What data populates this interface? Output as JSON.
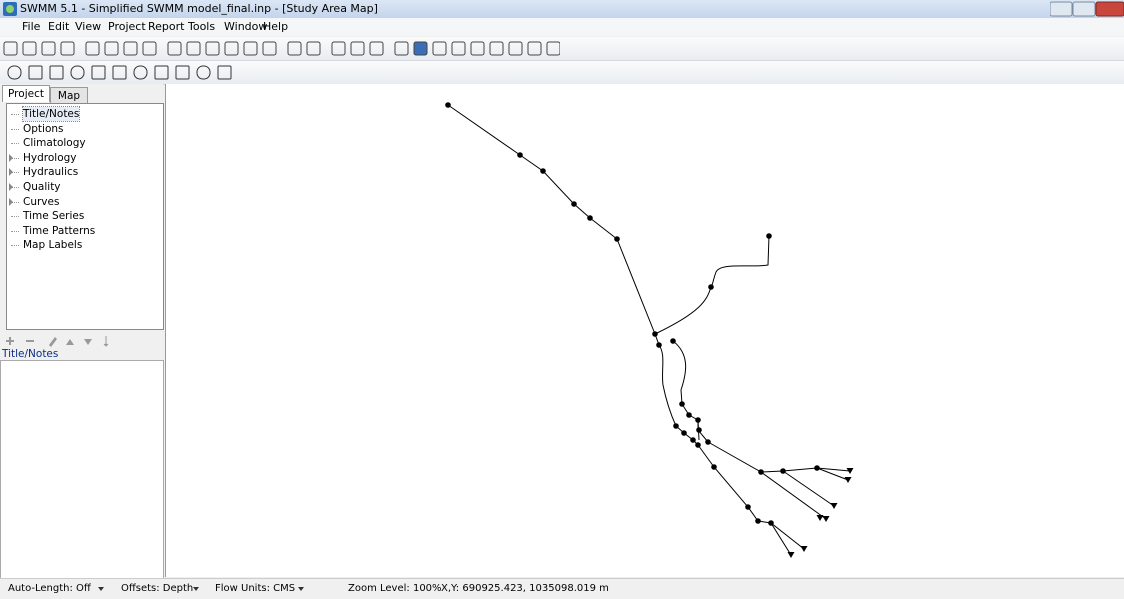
{
  "window": {
    "title": "SWMM 5.1 - Simplified SWMM model_final.inp - [Study Area Map]"
  },
  "menu": [
    "File",
    "Edit",
    "View",
    "Project",
    "Report",
    "Tools",
    "Window",
    "Help"
  ],
  "tabs": [
    "Project",
    "Map"
  ],
  "tree": [
    "Title/Notes",
    "Options",
    "Climatology",
    "Hydrology",
    "Hydraulics",
    "Quality",
    "Curves",
    "Time Series",
    "Time Patterns",
    "Map Labels"
  ],
  "browser": {
    "label": "Title/Notes"
  },
  "status": [
    "Auto-Length: Off",
    "Offsets: Depth",
    "Flow Units: CMS",
    "Zoom Level: 100%",
    "X,Y: 690925.423, 1035098.019 m"
  ]
}
